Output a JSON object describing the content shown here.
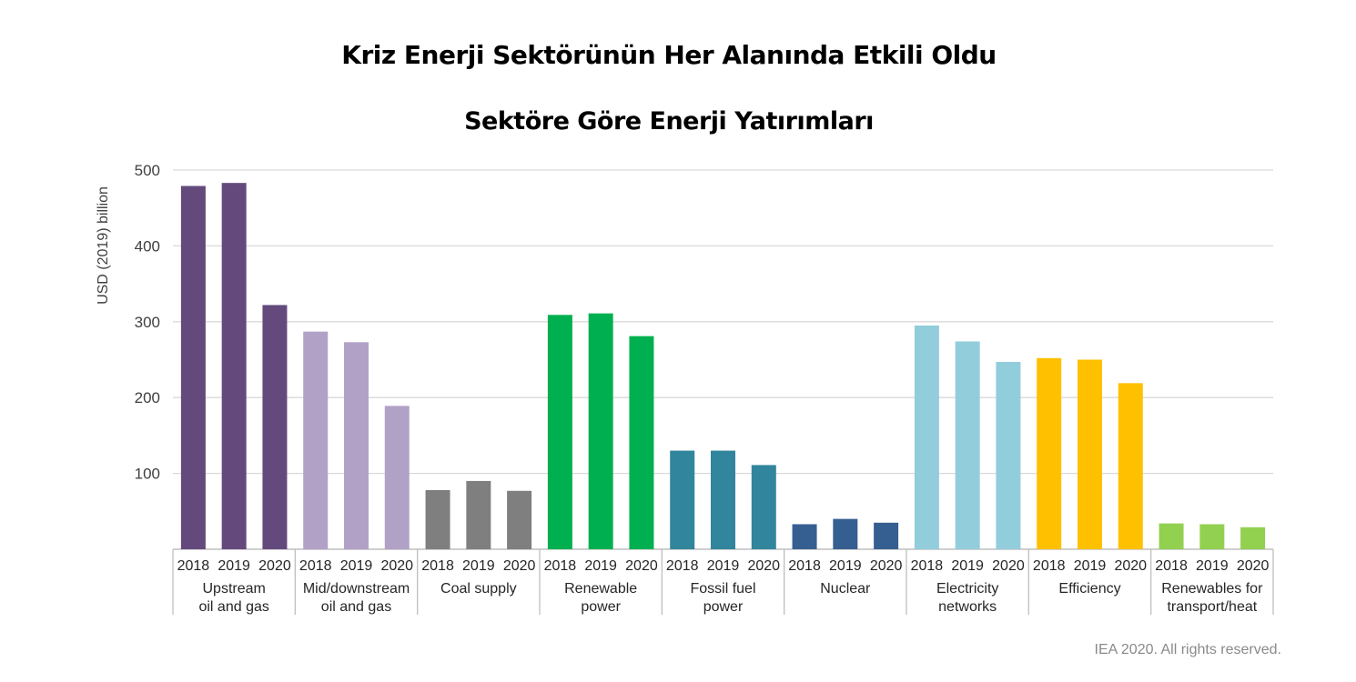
{
  "title": "Kriz Enerji Sektörünün Her Alanında Etkili Oldu",
  "subtitle": "Sektöre Göre Enerji Yatırımları",
  "footer": "IEA 2020. All rights reserved.",
  "chart_data": {
    "type": "bar",
    "ylabel": "USD (2019) billion",
    "ylim": [
      0,
      500
    ],
    "yticks": [
      100,
      200,
      300,
      400,
      500
    ],
    "grid": true,
    "years": [
      "2018",
      "2019",
      "2020"
    ],
    "groups": [
      {
        "name": "Upstream oil and gas",
        "lines": [
          "Upstream",
          "oil and gas"
        ],
        "color": "#644a7c",
        "values": [
          479,
          483,
          322
        ]
      },
      {
        "name": "Mid/downstream oil and gas",
        "lines": [
          "Mid/downstream",
          "oil and gas"
        ],
        "color": "#b2a1c7",
        "values": [
          287,
          273,
          189
        ]
      },
      {
        "name": "Coal supply",
        "lines": [
          "Coal supply"
        ],
        "color": "#7f7f7f",
        "values": [
          78,
          90,
          77
        ]
      },
      {
        "name": "Renewable power",
        "lines": [
          "Renewable",
          "power"
        ],
        "color": "#00b050",
        "values": [
          309,
          311,
          281
        ]
      },
      {
        "name": "Fossil fuel power",
        "lines": [
          "Fossil fuel",
          "power"
        ],
        "color": "#31859c",
        "values": [
          130,
          130,
          111
        ]
      },
      {
        "name": "Nuclear",
        "lines": [
          "Nuclear"
        ],
        "color": "#365f91",
        "values": [
          33,
          40,
          35
        ]
      },
      {
        "name": "Electricity networks",
        "lines": [
          "Electricity",
          "networks"
        ],
        "color": "#92cddc",
        "values": [
          295,
          274,
          247
        ]
      },
      {
        "name": "Efficiency",
        "lines": [
          "Efficiency"
        ],
        "color": "#ffc000",
        "values": [
          252,
          250,
          219
        ]
      },
      {
        "name": "Renewables for transport/heat",
        "lines": [
          "Renewables for",
          "transport/heat"
        ],
        "color": "#92d050",
        "values": [
          34,
          33,
          29
        ]
      }
    ]
  }
}
